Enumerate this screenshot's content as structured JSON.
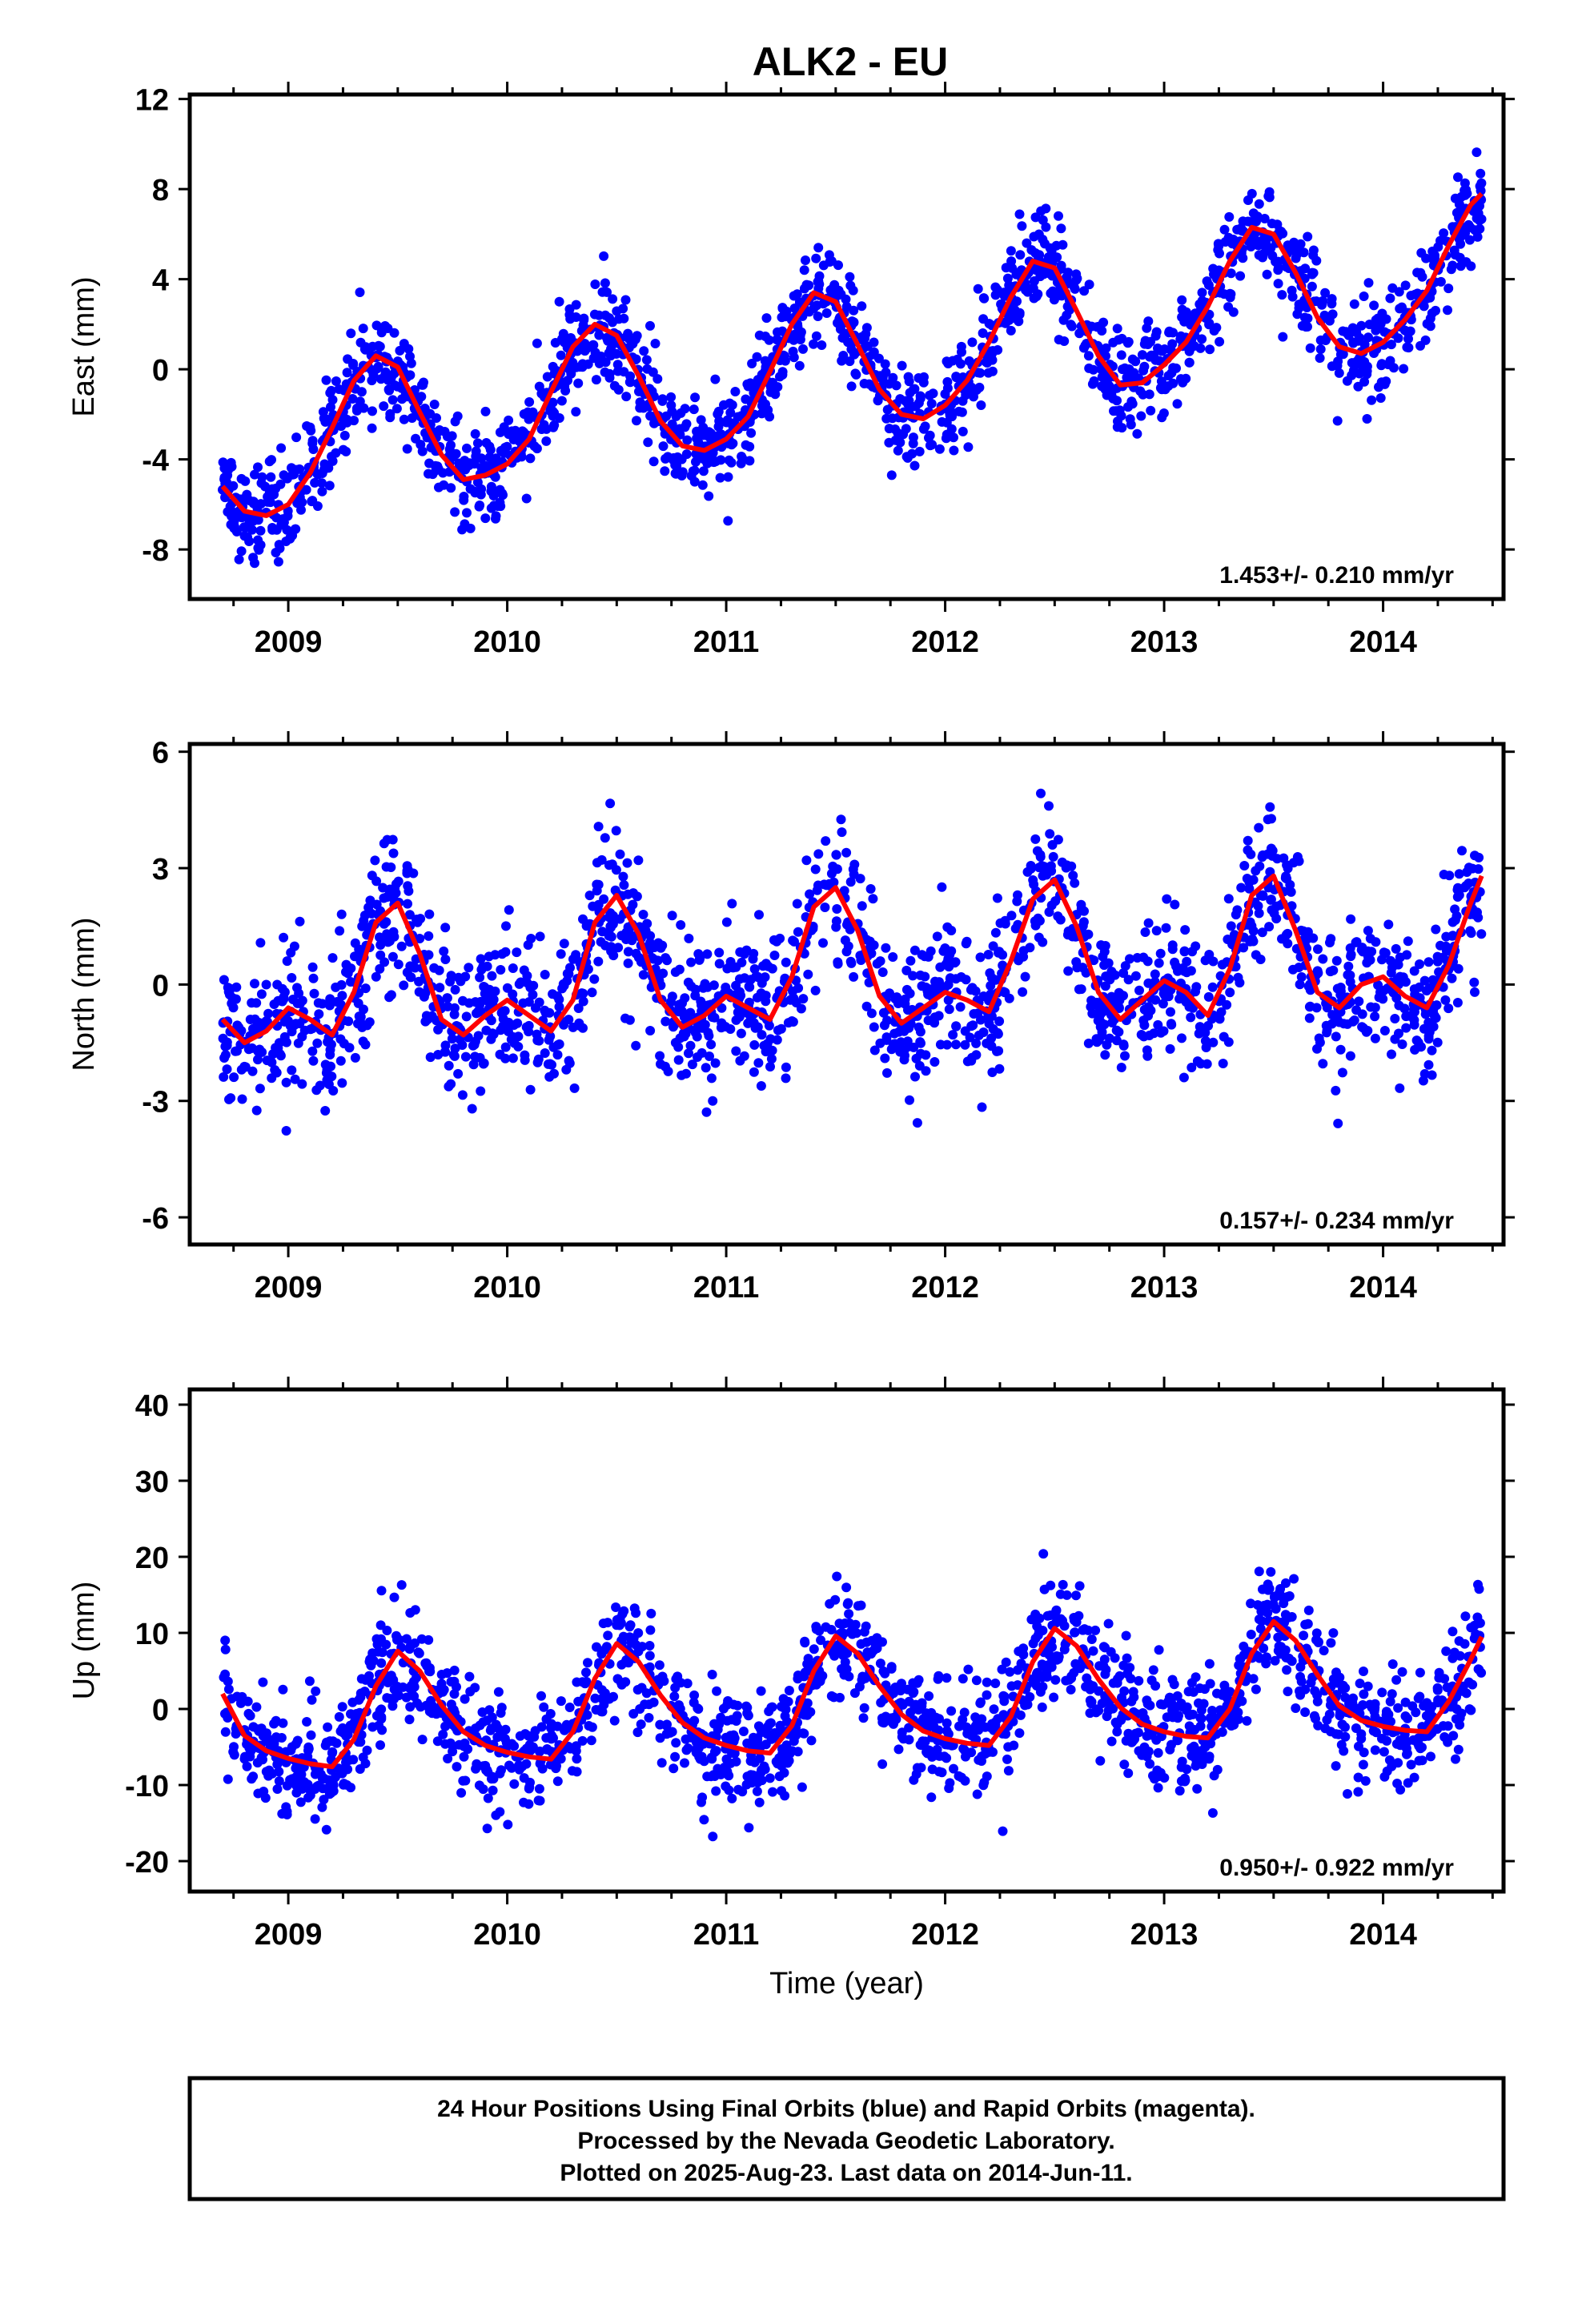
{
  "title": "ALK2 - EU",
  "colors": {
    "points": "#0000ff",
    "fit": "#ff0000",
    "frame": "#000000",
    "background": "#ffffff"
  },
  "footer": {
    "lines": [
      "24 Hour Positions Using Final Orbits (blue) and Rapid Orbits (magenta).",
      "Processed by the Nevada Geodetic Laboratory.",
      "Plotted on 2025-Aug-23. Last data on 2014-Jun-11."
    ]
  },
  "chart_data": [
    {
      "type": "scatter",
      "component": "east",
      "ylabel": "East (mm)",
      "xlabel": "",
      "rate_text": "1.453+/- 0.210 mm/yr",
      "xlim": [
        2008.55,
        2014.55
      ],
      "ylim": [
        -10.2,
        12.2
      ],
      "yticks": [
        -8,
        -4,
        0,
        4,
        8,
        12
      ],
      "xticks": [
        2009,
        2010,
        2011,
        2012,
        2013,
        2014
      ],
      "fit": {
        "name": "Fit",
        "x": [
          2008.7,
          2008.8,
          2008.9,
          2009.0,
          2009.1,
          2009.2,
          2009.3,
          2009.4,
          2009.5,
          2009.6,
          2009.7,
          2009.8,
          2009.9,
          2010.0,
          2010.1,
          2010.2,
          2010.3,
          2010.4,
          2010.5,
          2010.6,
          2010.7,
          2010.8,
          2010.9,
          2011.0,
          2011.1,
          2011.2,
          2011.3,
          2011.4,
          2011.5,
          2011.6,
          2011.7,
          2011.8,
          2011.9,
          2012.0,
          2012.1,
          2012.2,
          2012.3,
          2012.4,
          2012.5,
          2012.6,
          2012.7,
          2012.8,
          2012.9,
          2013.0,
          2013.1,
          2013.2,
          2013.3,
          2013.4,
          2013.5,
          2013.6,
          2013.7,
          2013.8,
          2013.9,
          2014.0,
          2014.1,
          2014.2,
          2014.3,
          2014.4,
          2014.45
        ],
        "y": [
          -5.2,
          -6.3,
          -6.5,
          -6.0,
          -4.6,
          -2.6,
          -0.5,
          0.6,
          0.1,
          -1.9,
          -3.8,
          -4.9,
          -4.7,
          -4.2,
          -3.1,
          -1.0,
          1.0,
          2.0,
          1.5,
          -0.3,
          -2.3,
          -3.4,
          -3.6,
          -3.1,
          -2.1,
          -0.1,
          2.0,
          3.4,
          3.0,
          1.1,
          -0.9,
          -2.0,
          -2.2,
          -1.6,
          -0.5,
          1.2,
          3.2,
          4.8,
          4.5,
          2.6,
          0.6,
          -0.7,
          -0.6,
          0.2,
          1.2,
          2.8,
          4.8,
          6.3,
          6.0,
          4.3,
          2.3,
          1.0,
          0.7,
          1.2,
          2.2,
          3.5,
          5.5,
          7.3,
          7.8
        ]
      }
    },
    {
      "type": "scatter",
      "component": "north",
      "ylabel": "North (mm)",
      "xlabel": "",
      "rate_text": "0.157+/- 0.234 mm/yr",
      "xlim": [
        2008.55,
        2014.55
      ],
      "ylim": [
        -6.7,
        6.2
      ],
      "yticks": [
        -6,
        -3,
        0,
        3,
        6
      ],
      "xticks": [
        2009,
        2010,
        2011,
        2012,
        2013,
        2014
      ],
      "fit": {
        "name": "Fit",
        "x": [
          2008.7,
          2008.8,
          2008.9,
          2009.0,
          2009.1,
          2009.2,
          2009.3,
          2009.4,
          2009.5,
          2009.6,
          2009.7,
          2009.8,
          2009.9,
          2010.0,
          2010.1,
          2010.2,
          2010.3,
          2010.4,
          2010.5,
          2010.6,
          2010.7,
          2010.8,
          2010.9,
          2011.0,
          2011.1,
          2011.2,
          2011.3,
          2011.4,
          2011.5,
          2011.6,
          2011.7,
          2011.8,
          2011.9,
          2012.0,
          2012.1,
          2012.2,
          2012.3,
          2012.4,
          2012.5,
          2012.6,
          2012.7,
          2012.8,
          2012.9,
          2013.0,
          2013.1,
          2013.2,
          2013.3,
          2013.4,
          2013.5,
          2013.6,
          2013.7,
          2013.8,
          2013.9,
          2014.0,
          2014.1,
          2014.2,
          2014.3,
          2014.4,
          2014.45
        ],
        "y": [
          -0.9,
          -1.5,
          -1.2,
          -0.6,
          -0.9,
          -1.3,
          -0.2,
          1.6,
          2.1,
          0.8,
          -0.9,
          -1.3,
          -0.8,
          -0.4,
          -0.8,
          -1.2,
          -0.4,
          1.6,
          2.3,
          1.3,
          -0.4,
          -1.1,
          -0.8,
          -0.3,
          -0.6,
          -0.9,
          0.2,
          2.0,
          2.5,
          1.4,
          -0.3,
          -1.0,
          -0.6,
          -0.2,
          -0.4,
          -0.7,
          0.6,
          2.2,
          2.7,
          1.5,
          -0.2,
          -0.9,
          -0.4,
          0.1,
          -0.2,
          -0.8,
          0.4,
          2.3,
          2.8,
          1.4,
          -0.2,
          -0.6,
          0.0,
          0.2,
          -0.3,
          -0.6,
          0.5,
          2.1,
          2.8
        ]
      }
    },
    {
      "type": "scatter",
      "component": "up",
      "ylabel": "Up (mm)",
      "xlabel": "Time (year)",
      "rate_text": "0.950+/- 0.922 mm/yr",
      "xlim": [
        2008.55,
        2014.55
      ],
      "ylim": [
        -24,
        42
      ],
      "yticks": [
        -20,
        -10,
        0,
        10,
        20,
        30,
        40
      ],
      "xticks": [
        2009,
        2010,
        2011,
        2012,
        2013,
        2014
      ],
      "fit": {
        "name": "Fit",
        "x": [
          2008.7,
          2008.8,
          2008.9,
          2009.0,
          2009.1,
          2009.2,
          2009.3,
          2009.4,
          2009.5,
          2009.6,
          2009.7,
          2009.8,
          2009.9,
          2010.0,
          2010.1,
          2010.2,
          2010.3,
          2010.4,
          2010.5,
          2010.6,
          2010.7,
          2010.8,
          2010.9,
          2011.0,
          2011.1,
          2011.2,
          2011.3,
          2011.4,
          2011.5,
          2011.6,
          2011.7,
          2011.8,
          2011.9,
          2012.0,
          2012.1,
          2012.2,
          2012.3,
          2012.4,
          2012.5,
          2012.6,
          2012.7,
          2012.8,
          2012.9,
          2013.0,
          2013.1,
          2013.2,
          2013.3,
          2013.4,
          2013.5,
          2013.6,
          2013.7,
          2013.8,
          2013.9,
          2014.0,
          2014.1,
          2014.2,
          2014.3,
          2014.4,
          2014.45
        ],
        "y": [
          2.0,
          -3.5,
          -5.5,
          -6.5,
          -7.2,
          -7.6,
          -4.0,
          3.0,
          7.6,
          5.0,
          0.5,
          -3.0,
          -4.8,
          -5.7,
          -6.3,
          -6.6,
          -3.0,
          4.0,
          8.6,
          6.2,
          1.8,
          -1.8,
          -3.8,
          -4.8,
          -5.5,
          -5.8,
          -2.2,
          5.0,
          9.6,
          7.3,
          3.0,
          -0.7,
          -2.9,
          -3.9,
          -4.5,
          -4.8,
          -1.0,
          6.2,
          10.6,
          8.3,
          3.9,
          0.2,
          -2.0,
          -3.0,
          -3.6,
          -3.8,
          0.0,
          7.3,
          11.5,
          9.0,
          4.5,
          0.4,
          -1.5,
          -2.3,
          -2.8,
          -3.0,
          1.0,
          6.5,
          9.5
        ]
      }
    }
  ]
}
